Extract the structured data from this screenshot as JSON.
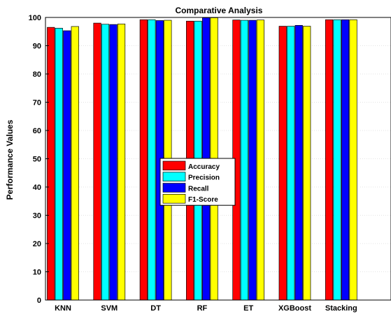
{
  "chart_data": {
    "type": "bar",
    "title": "Comparative Analysis",
    "xlabel": "",
    "ylabel": "Performance Values",
    "ylim": [
      0,
      100
    ],
    "yticks": [
      0,
      10,
      20,
      30,
      40,
      50,
      60,
      70,
      80,
      90,
      100
    ],
    "grid": true,
    "legend_position": "center",
    "categories": [
      "KNN",
      "SVM",
      "DT",
      "RF",
      "ET",
      "XGBoost",
      "Stacking"
    ],
    "series": [
      {
        "name": "Accuracy",
        "color": "#ff0000",
        "values": [
          96.5,
          98.0,
          99.2,
          98.7,
          99.1,
          96.9,
          99.2
        ]
      },
      {
        "name": "Precision",
        "color": "#00ffff",
        "values": [
          96.2,
          97.6,
          99.2,
          98.7,
          99.0,
          96.9,
          99.2
        ]
      },
      {
        "name": "Recall",
        "color": "#0000ff",
        "values": [
          95.3,
          97.5,
          98.9,
          99.9,
          99.0,
          97.2,
          99.2
        ]
      },
      {
        "name": "F1-Score",
        "color": "#ffff00",
        "values": [
          96.8,
          97.7,
          99.0,
          99.9,
          99.1,
          96.9,
          99.2
        ]
      }
    ]
  }
}
